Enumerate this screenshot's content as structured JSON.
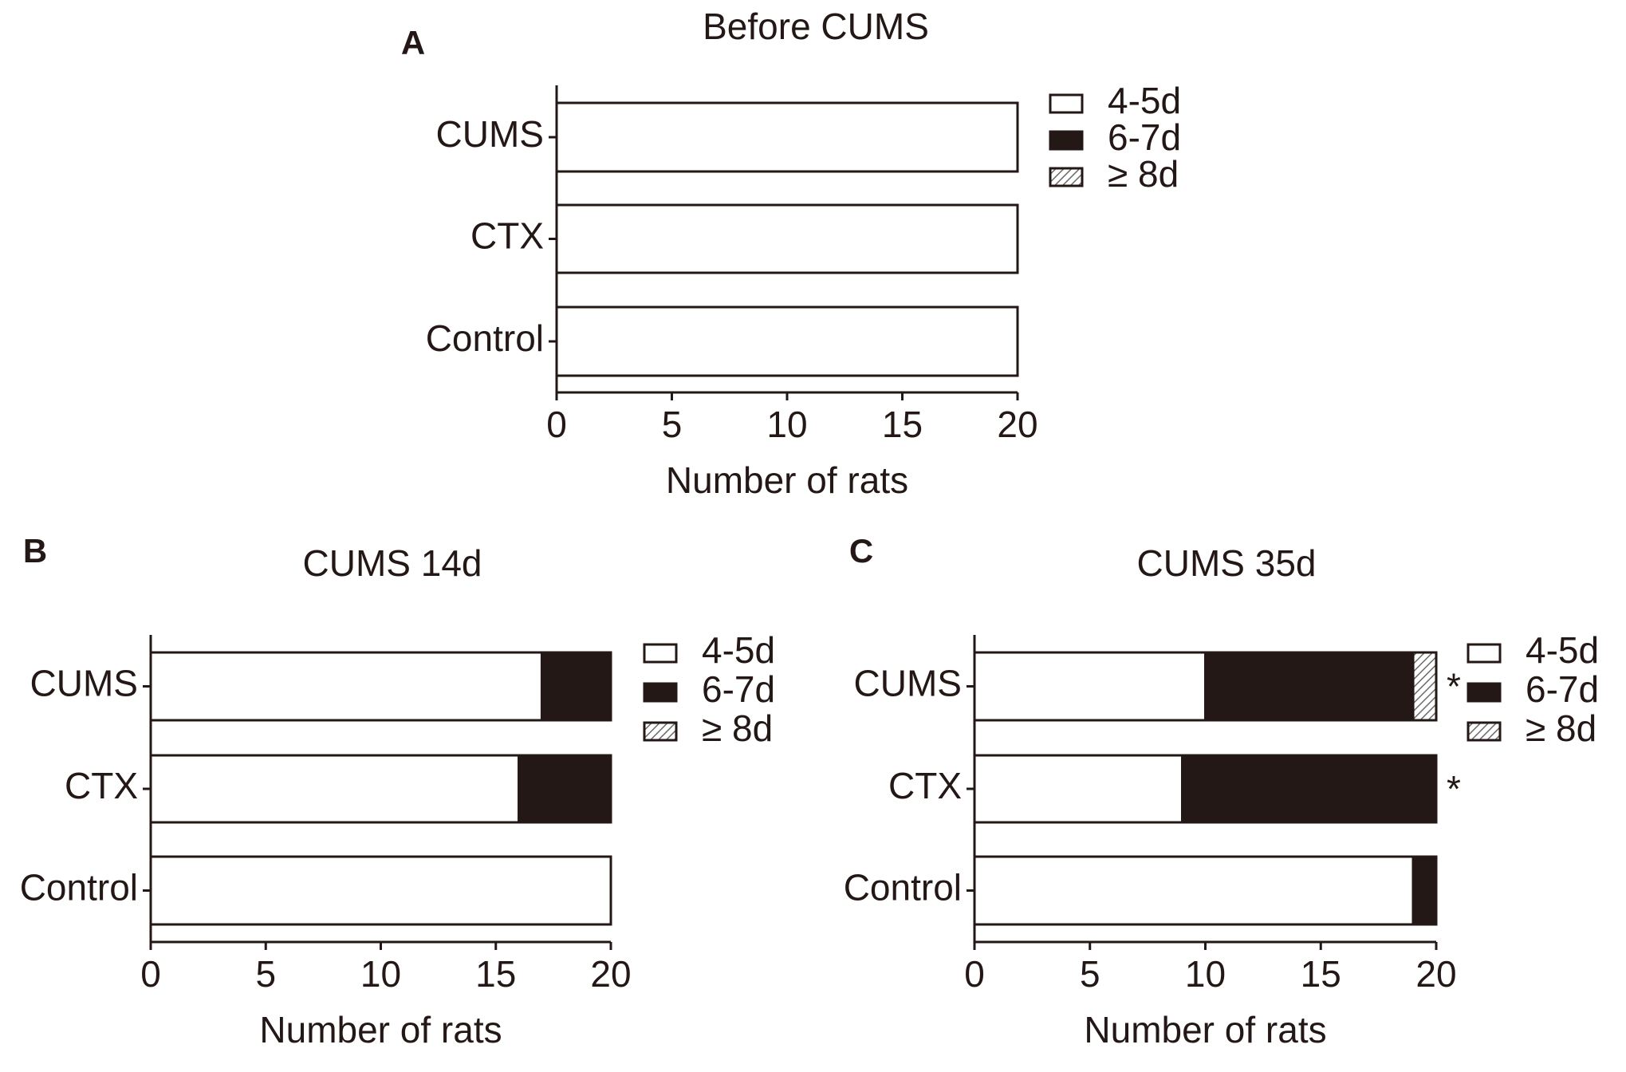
{
  "chart_data": [
    {
      "type": "stacked-barh",
      "panel_label": "A",
      "title": "Before    CUMS",
      "x_label": "Number of rats",
      "categories": [
        "CUMS",
        "CTX",
        "Control"
      ],
      "series": [
        {
          "name": "4-5d",
          "color": "#ffffff",
          "values": [
            20,
            20,
            20
          ]
        },
        {
          "name": "6-7d",
          "color": "#231815",
          "values": [
            0,
            0,
            0
          ]
        },
        {
          "name": "≥  8d",
          "color": "#8c8c8c",
          "hatch": true,
          "values": [
            0,
            0,
            0
          ]
        }
      ],
      "xlim": [
        0,
        20
      ],
      "xticks": [
        0,
        5,
        10,
        15,
        20
      ],
      "legend": "right"
    },
    {
      "type": "stacked-barh",
      "panel_label": "B",
      "title": "CUMS  14d",
      "x_label": "Number of rats",
      "categories": [
        "CUMS",
        "CTX",
        "Control"
      ],
      "series": [
        {
          "name": "4-5d",
          "color": "#ffffff",
          "values": [
            17,
            16,
            20
          ]
        },
        {
          "name": "6-7d",
          "color": "#231815",
          "values": [
            3,
            4,
            0
          ]
        },
        {
          "name": "≥  8d",
          "color": "#8c8c8c",
          "hatch": true,
          "values": [
            0,
            0,
            0
          ]
        }
      ],
      "xlim": [
        0,
        20
      ],
      "xticks": [
        0,
        5,
        10,
        15,
        20
      ],
      "legend": "right"
    },
    {
      "type": "stacked-barh",
      "panel_label": "C",
      "title": "CUMS  35d",
      "x_label": "Number of rats",
      "categories": [
        "CUMS",
        "CTX",
        "Control"
      ],
      "series": [
        {
          "name": "4-5d",
          "color": "#ffffff",
          "values": [
            10,
            9,
            19
          ]
        },
        {
          "name": "6-7d",
          "color": "#231815",
          "values": [
            9,
            11,
            1
          ]
        },
        {
          "name": "≥  8d",
          "color": "#8c8c8c",
          "hatch": true,
          "values": [
            1,
            0,
            0
          ]
        }
      ],
      "annotations": [
        "*",
        "*",
        null
      ],
      "xlim": [
        0,
        20
      ],
      "xticks": [
        0,
        5,
        10,
        15,
        20
      ],
      "legend": "right"
    }
  ]
}
